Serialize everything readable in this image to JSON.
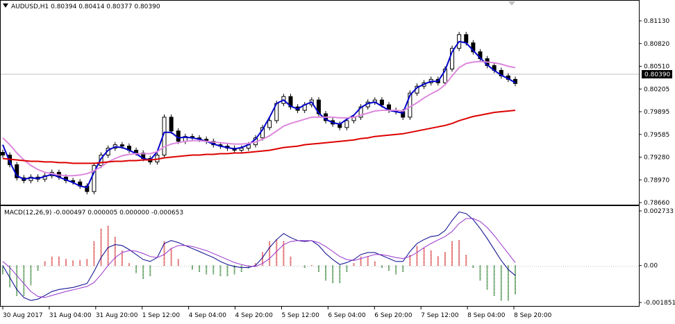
{
  "chart_data": {
    "type": "line",
    "symbol_header": "AUDUSD,H1  0.80394 0.80414 0.80377 0.80390",
    "current_price_label": "0.80390",
    "current_price": 0.8039,
    "price_axis": {
      "ticks": [
        "0.81130",
        "0.80820",
        "0.80510",
        "0.80205",
        "0.79895",
        "0.79585",
        "0.79280",
        "0.78970",
        "0.78660"
      ],
      "ylim": [
        0.7866,
        0.813
      ]
    },
    "macd_header": "MACD(12,26,9) -0.000497 0.000005 0.000000 -0.000653",
    "macd_axis": {
      "ticks": [
        "0.002733",
        "0.00",
        "-0.001851"
      ],
      "ylim": [
        -0.001851,
        0.002733
      ]
    },
    "x_ticks": [
      "30 Aug 2017",
      "31 Aug 04:00",
      "31 Aug 20:00",
      "1 Sep 12:00",
      "4 Sep 04:00",
      "4 Sep 20:00",
      "5 Sep 12:00",
      "6 Sep 04:00",
      "6 Sep 20:00",
      "7 Sep 12:00",
      "8 Sep 04:00",
      "8 Sep 20:00"
    ],
    "colors": {
      "candle": "#000000",
      "fast_ma": "#0000cc",
      "mid_ma": "#dd88dd",
      "slow_ma": "#dd0000",
      "macd_line": "#00008b",
      "signal_line": "#9932cc",
      "hist_pos": "#cc0000",
      "hist_neg": "#006400"
    },
    "price_series": [
      {
        "kind": "close",
        "values": [
          0.7935,
          0.7921,
          0.7902,
          0.7898,
          0.7903,
          0.79,
          0.7905,
          0.791,
          0.7903,
          0.7898,
          0.7896,
          0.789,
          0.7882,
          0.792,
          0.7935,
          0.7945,
          0.795,
          0.7948,
          0.7942,
          0.7938,
          0.793,
          0.7925,
          0.7935,
          0.799,
          0.797,
          0.7955,
          0.7962,
          0.796,
          0.7958,
          0.7955,
          0.795,
          0.7948,
          0.7945,
          0.7942,
          0.7945,
          0.795,
          0.796,
          0.7975,
          0.7985,
          0.801,
          0.802,
          0.8005,
          0.8,
          0.8008,
          0.8015,
          0.7995,
          0.7985,
          0.798,
          0.7975,
          0.7985,
          0.799,
          0.8005,
          0.8012,
          0.8015,
          0.8008,
          0.8,
          0.7998,
          0.799,
          0.8025,
          0.8035,
          0.804,
          0.8045,
          0.804,
          0.806,
          0.809,
          0.811,
          0.8098,
          0.8085,
          0.8075,
          0.8065,
          0.8058,
          0.805,
          0.8045,
          0.8039
        ]
      },
      {
        "kind": "fast_ma",
        "values": [
          0.795,
          0.7925,
          0.7905,
          0.79,
          0.7902,
          0.7901,
          0.7904,
          0.7907,
          0.7903,
          0.7899,
          0.7895,
          0.789,
          0.7888,
          0.791,
          0.793,
          0.7942,
          0.7947,
          0.7946,
          0.7942,
          0.7937,
          0.793,
          0.7928,
          0.794,
          0.7968,
          0.7968,
          0.796,
          0.7961,
          0.796,
          0.7958,
          0.7955,
          0.7951,
          0.7948,
          0.7946,
          0.7944,
          0.7946,
          0.795,
          0.7958,
          0.7972,
          0.799,
          0.801,
          0.8015,
          0.8006,
          0.8002,
          0.8008,
          0.8012,
          0.7996,
          0.7987,
          0.7982,
          0.798,
          0.7987,
          0.7993,
          0.8004,
          0.801,
          0.8012,
          0.8006,
          0.8,
          0.7998,
          0.7996,
          0.8022,
          0.8033,
          0.8038,
          0.8042,
          0.8042,
          0.8058,
          0.8085,
          0.81,
          0.8098,
          0.8087,
          0.8076,
          0.8066,
          0.8058,
          0.8051,
          0.8046,
          0.804
        ]
      },
      {
        "kind": "mid_ma",
        "values": [
          0.796,
          0.795,
          0.7938,
          0.7928,
          0.792,
          0.7914,
          0.791,
          0.7908,
          0.7906,
          0.7905,
          0.7905,
          0.7906,
          0.7908,
          0.7912,
          0.7918,
          0.7925,
          0.793,
          0.7934,
          0.7936,
          0.7937,
          0.7937,
          0.7937,
          0.794,
          0.7947,
          0.7951,
          0.7953,
          0.7955,
          0.7956,
          0.7956,
          0.7955,
          0.7954,
          0.7953,
          0.7952,
          0.7951,
          0.7951,
          0.7952,
          0.7954,
          0.7958,
          0.7963,
          0.797,
          0.7977,
          0.7981,
          0.7984,
          0.7987,
          0.799,
          0.799,
          0.799,
          0.799,
          0.7989,
          0.7989,
          0.799,
          0.7993,
          0.7996,
          0.7999,
          0.8,
          0.8,
          0.8,
          0.7999,
          0.8005,
          0.8011,
          0.8018,
          0.8024,
          0.8029,
          0.8037,
          0.805,
          0.8062,
          0.8068,
          0.807,
          0.8071,
          0.807,
          0.8069,
          0.8067,
          0.8064,
          0.8062
        ]
      },
      {
        "kind": "slow_ma",
        "values": [
          0.793,
          0.7929,
          0.7928,
          0.7927,
          0.7926,
          0.7926,
          0.7925,
          0.7925,
          0.7924,
          0.7924,
          0.7923,
          0.7923,
          0.7923,
          0.7923,
          0.7924,
          0.7925,
          0.7926,
          0.7926,
          0.7927,
          0.7927,
          0.7928,
          0.7928,
          0.7929,
          0.7931,
          0.7932,
          0.7933,
          0.7934,
          0.7935,
          0.7935,
          0.7936,
          0.7936,
          0.7937,
          0.7937,
          0.7938,
          0.7938,
          0.7939,
          0.794,
          0.7941,
          0.7942,
          0.7944,
          0.7946,
          0.7947,
          0.7948,
          0.795,
          0.7951,
          0.7952,
          0.7953,
          0.7954,
          0.7955,
          0.7956,
          0.7957,
          0.7959,
          0.796,
          0.7962,
          0.7963,
          0.7964,
          0.7965,
          0.7966,
          0.7968,
          0.797,
          0.7972,
          0.7974,
          0.7976,
          0.7978,
          0.7981,
          0.7985,
          0.7988,
          0.7991,
          0.7993,
          0.7995,
          0.7997,
          0.7998,
          0.7999,
          0.8
        ]
      }
    ],
    "macd_series": [
      {
        "kind": "macd",
        "values": [
          -0.0,
          -0.0006,
          -0.0012,
          -0.0016,
          -0.00175,
          -0.00168,
          -0.0015,
          -0.0013,
          -0.0012,
          -0.00115,
          -0.0011,
          -0.001,
          -0.0009,
          -0.0003,
          0.0004,
          0.0009,
          0.00105,
          0.001,
          0.0008,
          0.00055,
          0.0003,
          0.0002,
          0.0004,
          0.0011,
          0.00125,
          0.00115,
          0.001,
          0.00085,
          0.0007,
          0.00055,
          0.0004,
          0.0002,
          5e-05,
          -5e-05,
          -0.0001,
          -0.0001,
          0.0,
          0.0004,
          0.0009,
          0.0013,
          0.0016,
          0.0014,
          0.00125,
          0.0012,
          0.00125,
          0.001,
          0.0006,
          0.0003,
          5e-05,
          0.00015,
          0.0003,
          0.00055,
          0.00065,
          0.00065,
          0.0005,
          0.00035,
          0.0002,
          0.0002,
          0.0007,
          0.0011,
          0.0013,
          0.00145,
          0.0015,
          0.00175,
          0.00225,
          0.00268,
          0.0026,
          0.0023,
          0.00185,
          0.00135,
          0.0008,
          0.00025,
          -0.0002,
          -0.0005
        ]
      },
      {
        "kind": "signal",
        "values": [
          0.0002,
          -0.0001,
          -0.0005,
          -0.0009,
          -0.0013,
          -0.00155,
          -0.0016,
          -0.0015,
          -0.0014,
          -0.0013,
          -0.00122,
          -0.00113,
          -0.00105,
          -0.00085,
          -0.00045,
          0.0,
          0.0004,
          0.00065,
          0.00075,
          0.00072,
          0.0006,
          0.00045,
          0.0004,
          0.00055,
          0.00085,
          0.001,
          0.001,
          0.00095,
          0.00085,
          0.00075,
          0.0006,
          0.00045,
          0.0003,
          0.00015,
          5e-05,
          -3e-05,
          -5e-05,
          0.0001,
          0.00035,
          0.0007,
          0.00105,
          0.0012,
          0.00125,
          0.00125,
          0.00124,
          0.00115,
          0.00095,
          0.0007,
          0.00045,
          0.0003,
          0.00025,
          0.00035,
          0.00045,
          0.00055,
          0.00055,
          0.00048,
          0.0004,
          0.00035,
          0.00045,
          0.00065,
          0.0009,
          0.0011,
          0.00128,
          0.00145,
          0.0017,
          0.0021,
          0.00235,
          0.00235,
          0.0022,
          0.0019,
          0.0015,
          0.00105,
          0.0006,
          0.00015
        ]
      }
    ]
  }
}
